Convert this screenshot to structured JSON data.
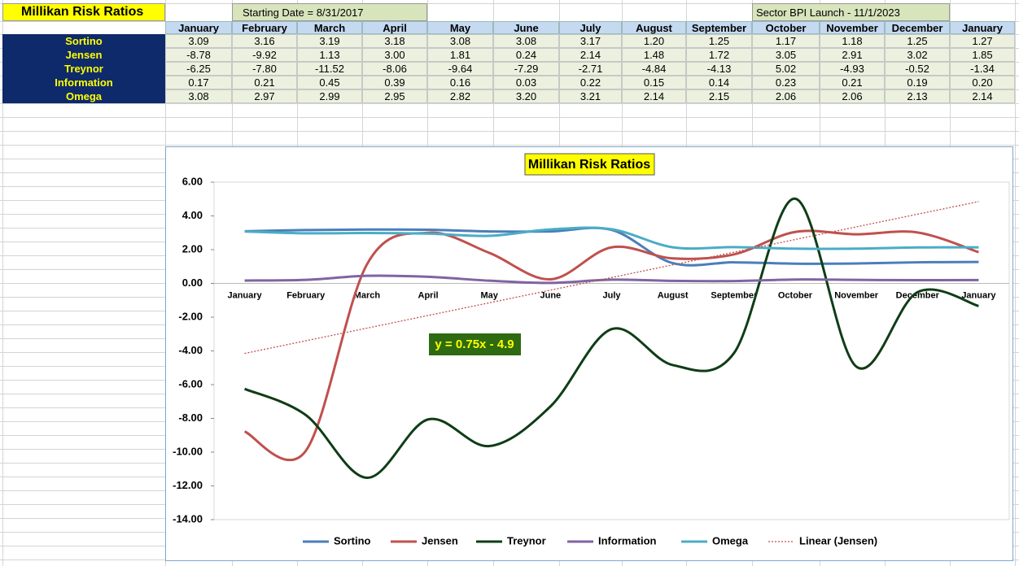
{
  "header": {
    "title": "Millikan Risk Ratios",
    "start_date": "Starting Date = 8/31/2017",
    "launch": "Sector BPI Launch - 11/1/2023"
  },
  "chart_data": {
    "type": "line",
    "title": "Millikan Risk Ratios",
    "smooth": true,
    "legend": "bottom",
    "categories": [
      "January",
      "February",
      "March",
      "April",
      "May",
      "June",
      "July",
      "August",
      "September",
      "October",
      "November",
      "December",
      "January"
    ],
    "ylim": [
      -14,
      6
    ],
    "yticks": [
      {
        "value": -14,
        "label": "-14.00"
      },
      {
        "value": -12,
        "label": "-12.00"
      },
      {
        "value": -10,
        "label": "-10.00"
      },
      {
        "value": -8,
        "label": "-8.00"
      },
      {
        "value": -6,
        "label": "-6.00"
      },
      {
        "value": -4,
        "label": "-4.00"
      },
      {
        "value": -2,
        "label": "-2.00"
      },
      {
        "value": 0,
        "label": "0.00"
      },
      {
        "value": 2,
        "label": "2.00"
      },
      {
        "value": 4,
        "label": "4.00"
      },
      {
        "value": 6,
        "label": "6.00"
      }
    ],
    "series": [
      {
        "name": "Sortino",
        "color": "#4a7ebb",
        "values": [
          3.09,
          3.16,
          3.19,
          3.18,
          3.08,
          3.08,
          3.17,
          1.2,
          1.25,
          1.17,
          1.18,
          1.25,
          1.27
        ],
        "value_labels": [
          "3.09",
          "3.16",
          "3.19",
          "3.18",
          "3.08",
          "3.08",
          "3.17",
          "1.20",
          "1.25",
          "1.17",
          "1.18",
          "1.25",
          "1.27"
        ]
      },
      {
        "name": "Jensen",
        "color": "#c0504d",
        "values": [
          -8.78,
          -9.92,
          1.13,
          3,
          1.81,
          0.24,
          2.14,
          1.48,
          1.72,
          3.05,
          2.91,
          3.02,
          1.85
        ],
        "value_labels": [
          "-8.78",
          "-9.92",
          "1.13",
          "3.00",
          "1.81",
          "0.24",
          "2.14",
          "1.48",
          "1.72",
          "3.05",
          "2.91",
          "3.02",
          "1.85"
        ]
      },
      {
        "name": "Treynor",
        "color": "#0f3d16",
        "values": [
          -6.25,
          -7.8,
          -11.52,
          -8.06,
          -9.64,
          -7.29,
          -2.71,
          -4.84,
          -4.13,
          5.02,
          -4.93,
          -0.52,
          -1.34
        ],
        "value_labels": [
          "-6.25",
          "-7.80",
          "-11.52",
          "-8.06",
          "-9.64",
          "-7.29",
          "-2.71",
          "-4.84",
          "-4.13",
          "5.02",
          "-4.93",
          "-0.52",
          "-1.34"
        ]
      },
      {
        "name": "Information",
        "color": "#8064a2",
        "values": [
          0.17,
          0.21,
          0.45,
          0.39,
          0.16,
          0.03,
          0.22,
          0.15,
          0.14,
          0.23,
          0.21,
          0.19,
          0.2
        ],
        "value_labels": [
          "0.17",
          "0.21",
          "0.45",
          "0.39",
          "0.16",
          "0.03",
          "0.22",
          "0.15",
          "0.14",
          "0.23",
          "0.21",
          "0.19",
          "0.20"
        ]
      },
      {
        "name": "Omega",
        "color": "#4bacc6",
        "values": [
          3.08,
          2.97,
          2.99,
          2.95,
          2.82,
          3.2,
          3.21,
          2.14,
          2.15,
          2.06,
          2.06,
          2.13,
          2.14
        ],
        "value_labels": [
          "3.08",
          "2.97",
          "2.99",
          "2.95",
          "2.82",
          "3.20",
          "3.21",
          "2.14",
          "2.15",
          "2.06",
          "2.06",
          "2.13",
          "2.14"
        ]
      }
    ],
    "trendline": {
      "name": "Linear (Jensen)",
      "color": "#c0504d",
      "slope": 0.75,
      "intercept": -4.9,
      "label": "y = 0.75x - 4.9"
    }
  }
}
